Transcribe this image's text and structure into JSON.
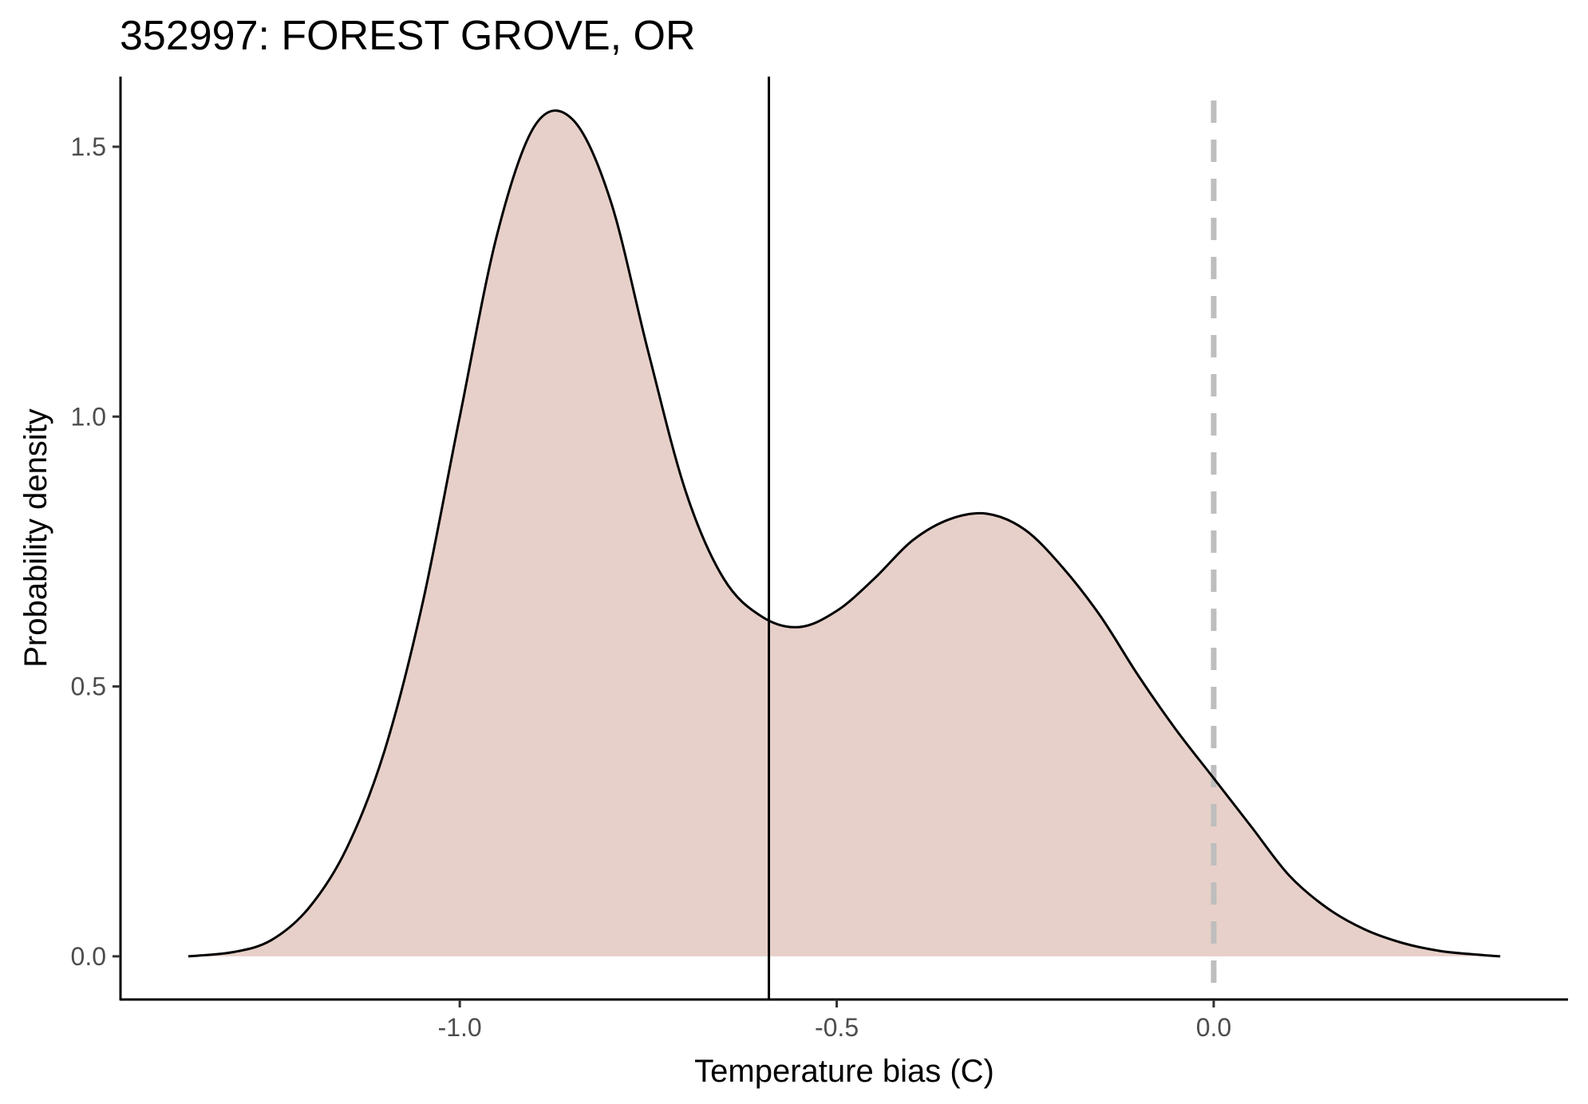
{
  "chart_data": {
    "type": "area",
    "title": "352997: FOREST GROVE, OR",
    "xlabel": "Temperature bias (C)",
    "ylabel": "Probability density",
    "xlim": [
      -1.45,
      0.47
    ],
    "ylim": [
      -0.08,
      1.63
    ],
    "xticks": [
      -1.0,
      -0.5,
      0.0
    ],
    "xtick_labels": [
      "-1.0",
      "-0.5",
      "0.0"
    ],
    "yticks": [
      0.0,
      0.5,
      1.0,
      1.5
    ],
    "ytick_labels": [
      "0.0",
      "0.5",
      "1.0",
      "1.5"
    ],
    "grid": false,
    "legend": "none",
    "series": [
      {
        "x": [
          -1.36,
          -1.3,
          -1.25,
          -1.2,
          -1.15,
          -1.1,
          -1.05,
          -1.0,
          -0.95,
          -0.9,
          -0.85,
          -0.8,
          -0.75,
          -0.7,
          -0.65,
          -0.6,
          -0.55,
          -0.5,
          -0.45,
          -0.4,
          -0.35,
          -0.3,
          -0.25,
          -0.2,
          -0.15,
          -0.1,
          -0.05,
          0.0,
          0.05,
          0.1,
          0.15,
          0.2,
          0.25,
          0.3,
          0.35,
          0.38
        ],
        "values": [
          0.0,
          0.008,
          0.03,
          0.09,
          0.2,
          0.38,
          0.65,
          1.0,
          1.34,
          1.54,
          1.55,
          1.4,
          1.12,
          0.86,
          0.7,
          0.63,
          0.61,
          0.64,
          0.7,
          0.77,
          0.81,
          0.82,
          0.79,
          0.72,
          0.63,
          0.52,
          0.42,
          0.33,
          0.24,
          0.15,
          0.09,
          0.05,
          0.025,
          0.01,
          0.003,
          0.0
        ]
      }
    ],
    "vlines": [
      {
        "x": -0.59,
        "style": "solid",
        "color": "#000000"
      },
      {
        "x": 0.0,
        "style": "dashed",
        "color": "#bebebe"
      }
    ],
    "colors": {
      "fill": "#e7d0c9",
      "line": "#000000",
      "axis": "#000000"
    }
  }
}
